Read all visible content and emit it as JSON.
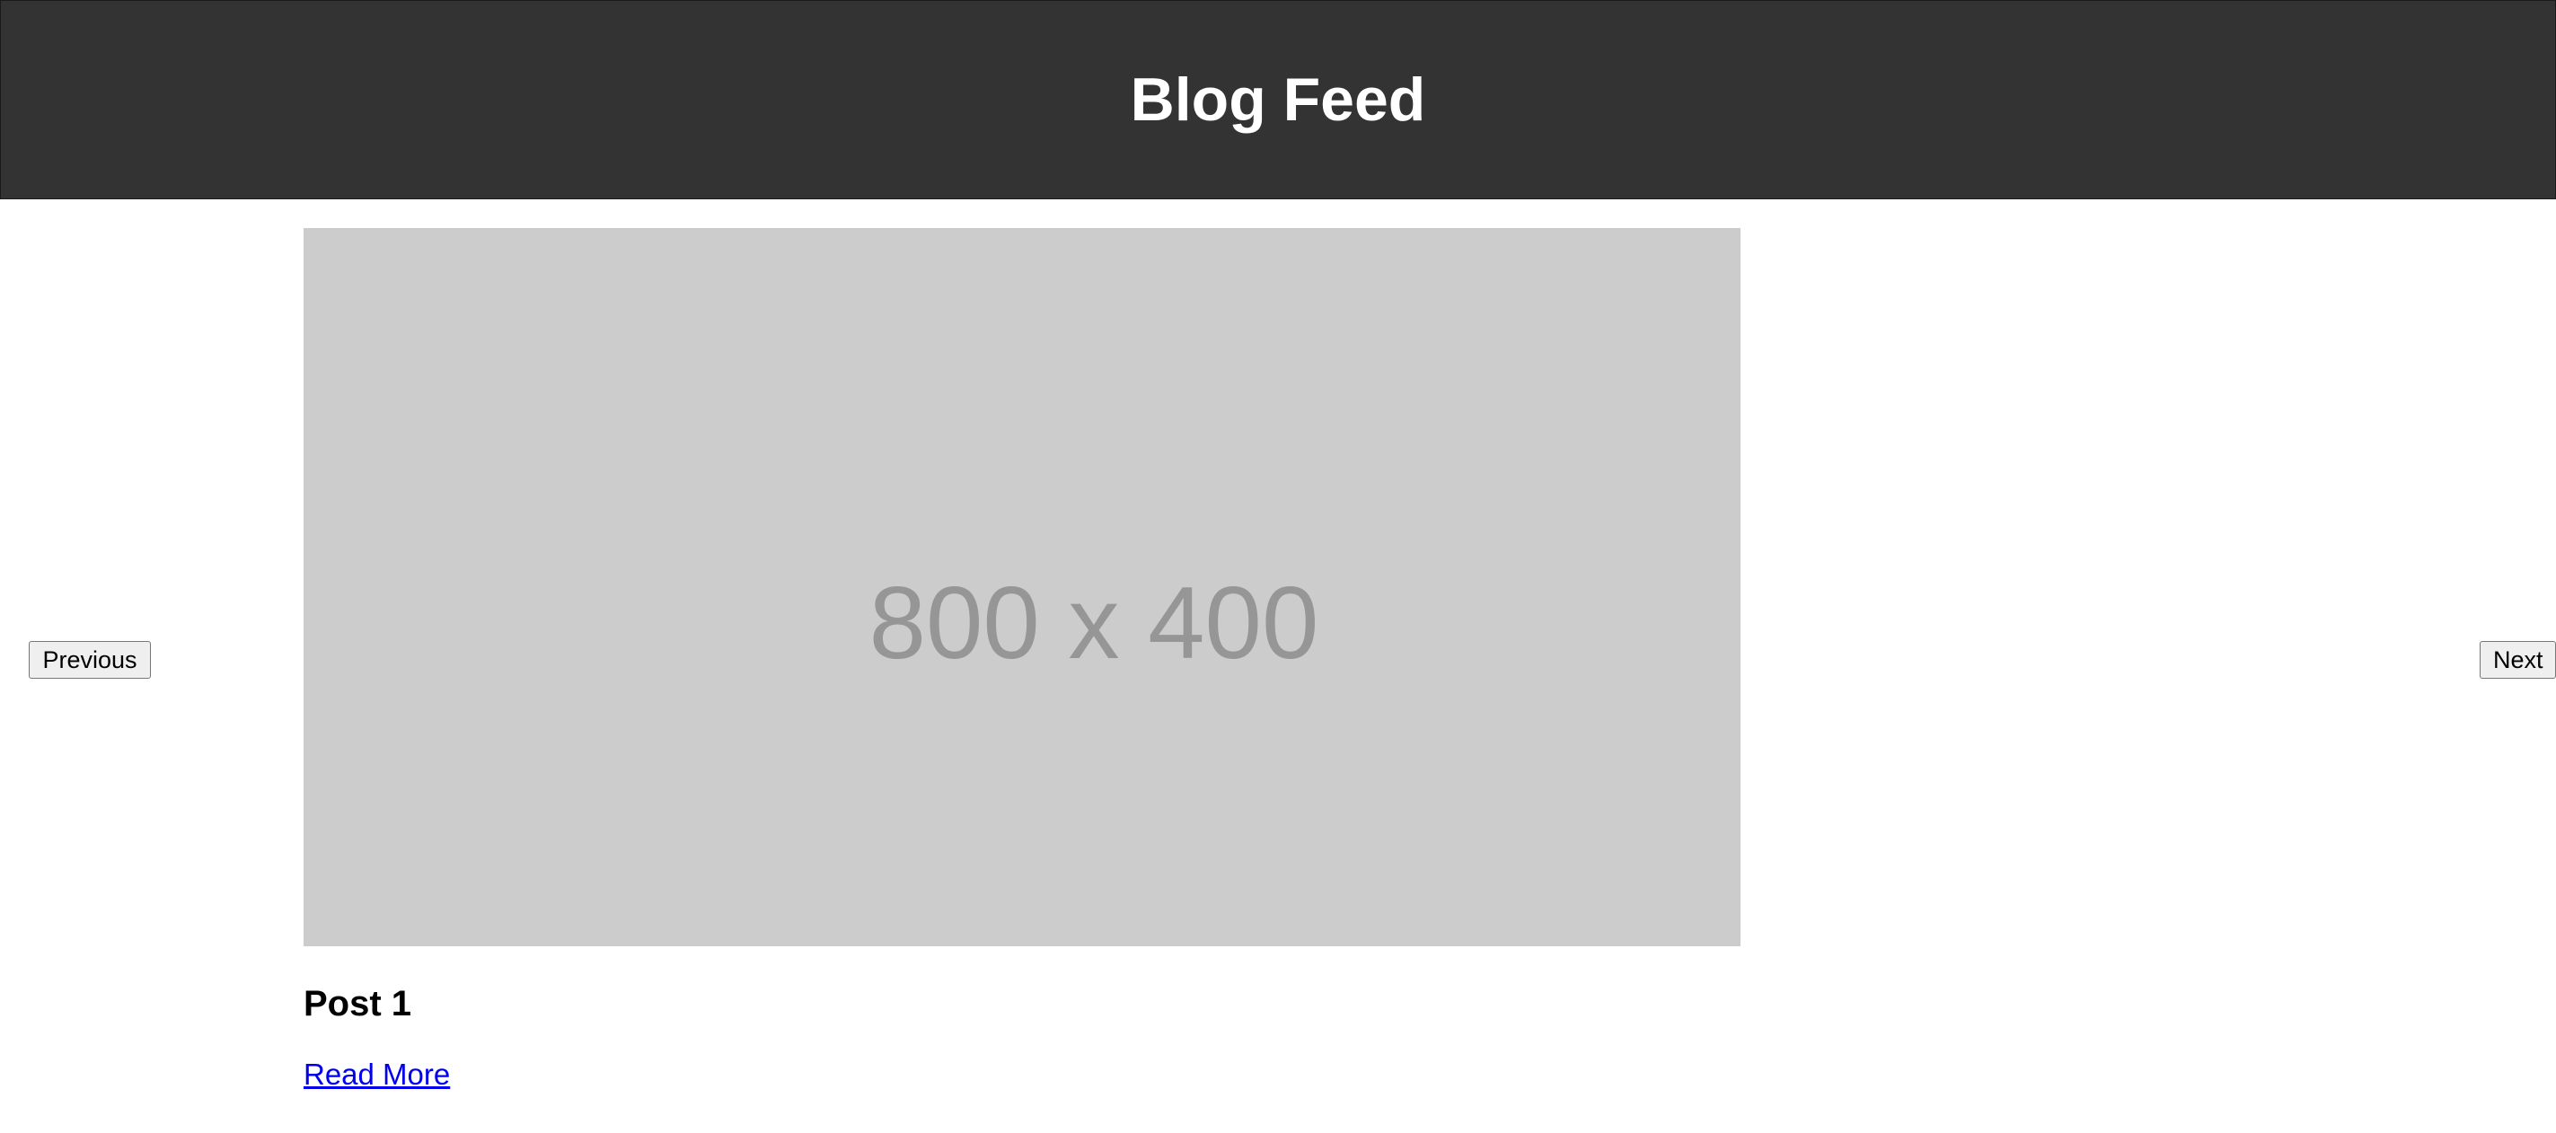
{
  "header": {
    "title": "Blog Feed"
  },
  "carousel": {
    "previous_label": "Previous",
    "next_label": "Next"
  },
  "post": {
    "image_placeholder": "800 x 400",
    "title": "Post 1",
    "read_more_label": "Read More"
  },
  "colors": {
    "header_bg": "#333333",
    "header_text": "#ffffff",
    "image_bg": "#cccccc",
    "link": "#0000ee"
  }
}
